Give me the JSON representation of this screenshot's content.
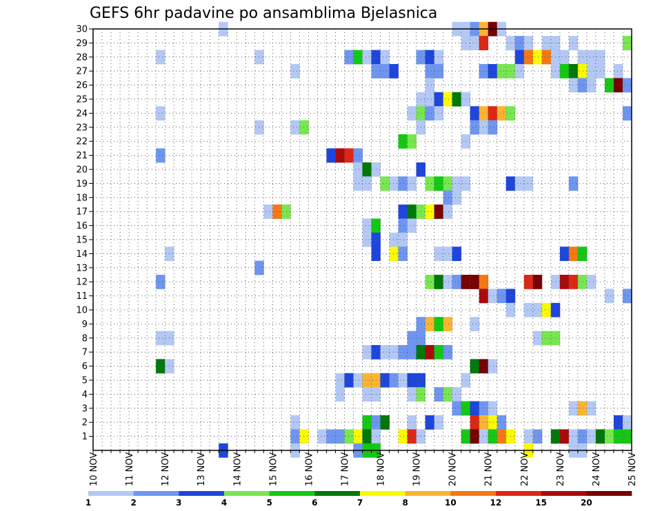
{
  "chart_data": {
    "type": "heatmap",
    "title": "GEFS 6hr padavine po ansamblima Bjelasnica",
    "xlabel": "",
    "ylabel": "",
    "x_ticks": [
      "10 NOV",
      "11 NOV",
      "12 NOV",
      "13 NOV",
      "14 NOV",
      "15 NOV",
      "16 NOV",
      "17 NOV",
      "18 NOV",
      "19 NOV",
      "20 NOV",
      "21 NOV",
      "22 NOV",
      "23 NOV",
      "24 NOV",
      "25 NOV"
    ],
    "y_ticks": [
      "1",
      "2",
      "3",
      "4",
      "5",
      "6",
      "7",
      "8",
      "9",
      "10",
      "11",
      "12",
      "13",
      "14",
      "15",
      "16",
      "17",
      "18",
      "19",
      "20",
      "21",
      "22",
      "23",
      "24",
      "25",
      "26",
      "27",
      "28",
      "29",
      "30"
    ],
    "xlim_days": [
      10,
      25
    ],
    "ylim_members": [
      0,
      30
    ],
    "grid": true,
    "legend": {
      "placement": "bottom",
      "bounds": [
        "1",
        "2",
        "3",
        "4",
        "5",
        "6",
        "7",
        "8",
        "10",
        "12",
        "15",
        "20"
      ],
      "colors": [
        "#b4c8f5",
        "#6e96f0",
        "#1e46dc",
        "#78e650",
        "#14c814",
        "#00780a",
        "#fafa00",
        "#fab432",
        "#f57814",
        "#dc2814",
        "#aa0a0a",
        "#780000"
      ]
    },
    "cells": [
      [
        13.5,
        13.75,
        30,
        0
      ],
      [
        20,
        20.25,
        30,
        0
      ],
      [
        20.25,
        20.5,
        30,
        0
      ],
      [
        20.5,
        20.75,
        30,
        1
      ],
      [
        20.75,
        21,
        30,
        7
      ],
      [
        21,
        21.25,
        30,
        11
      ],
      [
        21.25,
        21.5,
        30,
        0
      ],
      [
        20.25,
        20.5,
        29,
        0
      ],
      [
        20.5,
        20.75,
        29,
        0
      ],
      [
        20.75,
        21,
        29,
        9
      ],
      [
        21.5,
        21.75,
        29,
        0
      ],
      [
        21.75,
        22,
        29,
        1
      ],
      [
        22,
        22.25,
        29,
        0
      ],
      [
        22.5,
        22.75,
        29,
        0
      ],
      [
        22.75,
        23,
        29,
        0
      ],
      [
        23.25,
        23.5,
        29,
        0
      ],
      [
        24.75,
        25,
        29,
        3
      ],
      [
        11.75,
        12,
        28,
        0
      ],
      [
        14.5,
        14.75,
        28,
        0
      ],
      [
        17,
        17.25,
        28,
        1
      ],
      [
        17.25,
        17.5,
        28,
        4
      ],
      [
        17.5,
        17.75,
        28,
        0
      ],
      [
        17.75,
        18,
        28,
        2
      ],
      [
        18,
        18.25,
        28,
        0
      ],
      [
        19,
        19.25,
        28,
        1
      ],
      [
        19.25,
        19.5,
        28,
        2
      ],
      [
        19.5,
        19.75,
        28,
        0
      ],
      [
        21.75,
        22,
        28,
        2
      ],
      [
        22,
        22.25,
        28,
        8
      ],
      [
        22.25,
        22.5,
        28,
        6
      ],
      [
        22.5,
        22.75,
        28,
        8
      ],
      [
        22.75,
        23,
        28,
        0
      ],
      [
        23,
        23.25,
        28,
        0
      ],
      [
        23.5,
        23.75,
        28,
        0
      ],
      [
        23.75,
        24,
        28,
        0
      ],
      [
        24,
        24.25,
        28,
        0
      ],
      [
        15.5,
        15.75,
        27,
        0
      ],
      [
        17.75,
        18,
        27,
        1
      ],
      [
        18,
        18.25,
        27,
        1
      ],
      [
        18.25,
        18.5,
        27,
        2
      ],
      [
        19.25,
        19.5,
        27,
        1
      ],
      [
        19.5,
        19.75,
        27,
        1
      ],
      [
        20.75,
        21,
        27,
        1
      ],
      [
        21,
        21.25,
        27,
        2
      ],
      [
        21.25,
        21.5,
        27,
        3
      ],
      [
        21.5,
        21.75,
        27,
        3
      ],
      [
        21.75,
        22,
        27,
        0
      ],
      [
        22.75,
        23,
        27,
        0
      ],
      [
        23,
        23.25,
        27,
        4
      ],
      [
        23.25,
        23.5,
        27,
        5
      ],
      [
        23.5,
        23.75,
        27,
        6
      ],
      [
        23.75,
        24,
        27,
        0
      ],
      [
        24,
        24.25,
        27,
        0
      ],
      [
        24.5,
        24.75,
        27,
        0
      ],
      [
        19.25,
        19.5,
        26,
        0
      ],
      [
        23.25,
        23.5,
        26,
        0
      ],
      [
        23.5,
        23.75,
        26,
        1
      ],
      [
        23.75,
        24,
        26,
        0
      ],
      [
        24.25,
        24.5,
        26,
        4
      ],
      [
        24.5,
        24.75,
        26,
        11
      ],
      [
        24.75,
        25,
        26,
        1
      ],
      [
        19,
        19.25,
        25,
        0
      ],
      [
        19.25,
        19.5,
        25,
        0
      ],
      [
        19.5,
        19.75,
        25,
        2
      ],
      [
        19.75,
        20,
        25,
        6
      ],
      [
        20,
        20.25,
        25,
        5
      ],
      [
        20.25,
        20.5,
        25,
        0
      ],
      [
        11.75,
        12,
        24,
        0
      ],
      [
        18.75,
        19,
        24,
        0
      ],
      [
        19,
        19.25,
        24,
        3
      ],
      [
        19.25,
        19.5,
        24,
        1
      ],
      [
        19.5,
        19.75,
        24,
        0
      ],
      [
        20.5,
        20.75,
        24,
        2
      ],
      [
        20.75,
        21,
        24,
        7
      ],
      [
        21,
        21.25,
        24,
        9
      ],
      [
        21.25,
        21.5,
        24,
        7
      ],
      [
        21.5,
        21.75,
        24,
        3
      ],
      [
        24.75,
        25,
        24,
        1
      ],
      [
        14.5,
        14.75,
        23,
        0
      ],
      [
        15.5,
        15.75,
        23,
        0
      ],
      [
        15.75,
        16,
        23,
        3
      ],
      [
        19,
        19.25,
        23,
        0
      ],
      [
        20.5,
        20.75,
        23,
        1
      ],
      [
        20.75,
        21,
        23,
        0
      ],
      [
        21,
        21.25,
        23,
        1
      ],
      [
        18.5,
        18.75,
        22,
        4
      ],
      [
        18.75,
        19,
        22,
        3
      ],
      [
        20.25,
        20.5,
        22,
        0
      ],
      [
        11.75,
        12,
        21,
        1
      ],
      [
        16.5,
        16.75,
        21,
        2
      ],
      [
        16.75,
        17,
        21,
        10
      ],
      [
        17,
        17.25,
        21,
        9
      ],
      [
        17.25,
        17.5,
        21,
        1
      ],
      [
        17.25,
        17.5,
        20,
        0
      ],
      [
        17.5,
        17.75,
        20,
        5
      ],
      [
        17.75,
        18,
        20,
        0
      ],
      [
        19,
        19.25,
        20,
        2
      ],
      [
        17.25,
        17.5,
        19,
        0
      ],
      [
        17.5,
        17.75,
        19,
        0
      ],
      [
        18,
        18.25,
        19,
        3
      ],
      [
        18.25,
        18.5,
        19,
        0
      ],
      [
        18.5,
        18.75,
        19,
        1
      ],
      [
        18.75,
        19,
        19,
        0
      ],
      [
        19.25,
        19.5,
        19,
        3
      ],
      [
        19.5,
        19.75,
        19,
        4
      ],
      [
        19.75,
        20,
        19,
        3
      ],
      [
        20,
        20.25,
        19,
        0
      ],
      [
        20.25,
        20.5,
        19,
        0
      ],
      [
        21.5,
        21.75,
        19,
        2
      ],
      [
        21.75,
        22,
        19,
        0
      ],
      [
        22,
        22.25,
        19,
        0
      ],
      [
        23.25,
        23.5,
        19,
        1
      ],
      [
        19.75,
        20,
        18,
        1
      ],
      [
        20,
        20.25,
        18,
        0
      ],
      [
        14.75,
        15,
        17,
        0
      ],
      [
        15,
        15.25,
        17,
        8
      ],
      [
        15.25,
        15.5,
        17,
        3
      ],
      [
        18.5,
        18.75,
        17,
        2
      ],
      [
        18.75,
        19,
        17,
        5
      ],
      [
        19,
        19.25,
        17,
        3
      ],
      [
        19.25,
        19.5,
        17,
        6
      ],
      [
        19.5,
        19.75,
        17,
        11
      ],
      [
        19.75,
        20,
        17,
        0
      ],
      [
        17.5,
        17.75,
        16,
        0
      ],
      [
        17.75,
        18,
        16,
        4
      ],
      [
        18.5,
        18.75,
        16,
        1
      ],
      [
        18.75,
        19,
        16,
        0
      ],
      [
        17.5,
        17.75,
        15,
        0
      ],
      [
        17.75,
        18,
        15,
        2
      ],
      [
        18.25,
        18.5,
        15,
        0
      ],
      [
        18.5,
        18.75,
        15,
        0
      ],
      [
        12,
        12.25,
        14,
        0
      ],
      [
        17.75,
        18,
        14,
        2
      ],
      [
        18.25,
        18.5,
        14,
        6
      ],
      [
        18.5,
        18.75,
        14,
        1
      ],
      [
        19.5,
        19.75,
        14,
        0
      ],
      [
        19.75,
        20,
        14,
        0
      ],
      [
        20,
        20.25,
        14,
        2
      ],
      [
        23,
        23.25,
        14,
        2
      ],
      [
        23.25,
        23.5,
        14,
        8
      ],
      [
        23.5,
        23.75,
        14,
        4
      ],
      [
        14.5,
        14.75,
        13,
        1
      ],
      [
        11.75,
        12,
        12,
        1
      ],
      [
        19.25,
        19.5,
        12,
        3
      ],
      [
        19.5,
        19.75,
        12,
        5
      ],
      [
        19.75,
        20,
        12,
        0
      ],
      [
        20,
        20.25,
        12,
        1
      ],
      [
        20.25,
        20.5,
        12,
        11
      ],
      [
        20.5,
        20.75,
        12,
        11
      ],
      [
        20.75,
        21,
        12,
        8
      ],
      [
        22,
        22.25,
        12,
        9
      ],
      [
        22.25,
        22.5,
        12,
        11
      ],
      [
        22.75,
        23,
        12,
        0
      ],
      [
        23,
        23.25,
        12,
        10
      ],
      [
        23.25,
        23.5,
        12,
        9
      ],
      [
        23.5,
        23.75,
        12,
        3
      ],
      [
        23.75,
        24,
        12,
        0
      ],
      [
        20.75,
        21,
        11,
        10
      ],
      [
        21,
        21.25,
        11,
        0
      ],
      [
        21.25,
        21.5,
        11,
        1
      ],
      [
        21.5,
        21.75,
        11,
        2
      ],
      [
        24.25,
        24.5,
        11,
        0
      ],
      [
        24.75,
        25,
        11,
        1
      ],
      [
        21.5,
        21.75,
        10,
        0
      ],
      [
        22,
        22.25,
        10,
        0
      ],
      [
        22.25,
        22.5,
        10,
        0
      ],
      [
        22.5,
        22.75,
        10,
        6
      ],
      [
        22.75,
        23,
        10,
        2
      ],
      [
        19,
        19.25,
        9,
        1
      ],
      [
        19.25,
        19.5,
        9,
        7
      ],
      [
        19.5,
        19.75,
        9,
        4
      ],
      [
        19.75,
        20,
        9,
        7
      ],
      [
        20.5,
        20.75,
        9,
        0
      ],
      [
        11.75,
        12,
        8,
        0
      ],
      [
        12,
        12.25,
        8,
        0
      ],
      [
        18.75,
        19,
        8,
        1
      ],
      [
        19,
        19.25,
        8,
        1
      ],
      [
        22.25,
        22.5,
        8,
        0
      ],
      [
        22.5,
        22.75,
        8,
        3
      ],
      [
        22.75,
        23,
        8,
        3
      ],
      [
        17.5,
        17.75,
        7,
        0
      ],
      [
        17.75,
        18,
        7,
        2
      ],
      [
        18,
        18.25,
        7,
        0
      ],
      [
        18.25,
        18.5,
        7,
        0
      ],
      [
        18.5,
        18.75,
        7,
        1
      ],
      [
        18.75,
        19,
        7,
        1
      ],
      [
        19,
        19.25,
        7,
        5
      ],
      [
        19.25,
        19.5,
        7,
        10
      ],
      [
        19.5,
        19.75,
        7,
        4
      ],
      [
        19.75,
        20,
        7,
        1
      ],
      [
        11.75,
        12,
        6,
        5
      ],
      [
        12,
        12.25,
        6,
        0
      ],
      [
        20.5,
        20.75,
        6,
        5
      ],
      [
        20.75,
        21,
        6,
        11
      ],
      [
        21,
        21.25,
        6,
        0
      ],
      [
        16.75,
        17,
        5,
        0
      ],
      [
        17,
        17.25,
        5,
        2
      ],
      [
        17.25,
        17.5,
        5,
        0
      ],
      [
        17.5,
        17.75,
        5,
        7
      ],
      [
        17.75,
        18,
        5,
        7
      ],
      [
        18,
        18.25,
        5,
        2
      ],
      [
        18.25,
        18.5,
        5,
        1
      ],
      [
        18.5,
        18.75,
        5,
        0
      ],
      [
        18.75,
        19,
        5,
        2
      ],
      [
        19,
        19.25,
        5,
        2
      ],
      [
        20.25,
        20.5,
        5,
        0
      ],
      [
        16.75,
        17,
        4,
        0
      ],
      [
        17.5,
        17.75,
        4,
        0
      ],
      [
        17.75,
        18,
        4,
        0
      ],
      [
        18.75,
        19,
        4,
        0
      ],
      [
        19,
        19.25,
        4,
        3
      ],
      [
        19.5,
        19.75,
        4,
        1
      ],
      [
        19.75,
        20,
        4,
        3
      ],
      [
        20,
        20.25,
        4,
        0
      ],
      [
        20,
        20.25,
        3,
        1
      ],
      [
        20.25,
        20.5,
        3,
        4
      ],
      [
        20.5,
        20.75,
        3,
        2
      ],
      [
        20.75,
        21,
        3,
        1
      ],
      [
        21,
        21.25,
        3,
        0
      ],
      [
        23.25,
        23.5,
        3,
        0
      ],
      [
        23.5,
        23.75,
        3,
        7
      ],
      [
        23.75,
        24,
        3,
        0
      ],
      [
        15.5,
        15.75,
        2,
        0
      ],
      [
        17.5,
        17.75,
        2,
        4
      ],
      [
        17.75,
        18,
        2,
        1
      ],
      [
        18,
        18.25,
        2,
        5
      ],
      [
        18.75,
        19,
        2,
        0
      ],
      [
        19.25,
        19.5,
        2,
        2
      ],
      [
        19.5,
        19.75,
        2,
        0
      ],
      [
        20.5,
        20.75,
        2,
        9
      ],
      [
        20.75,
        21,
        2,
        7
      ],
      [
        21,
        21.25,
        2,
        6
      ],
      [
        21.25,
        21.5,
        2,
        1
      ],
      [
        24.5,
        24.75,
        2,
        2
      ],
      [
        24.75,
        25,
        2,
        0
      ],
      [
        15.5,
        15.75,
        1,
        1
      ],
      [
        15.75,
        16,
        1,
        6
      ],
      [
        16.25,
        16.5,
        1,
        0
      ],
      [
        16.5,
        16.75,
        1,
        1
      ],
      [
        16.75,
        17,
        1,
        1
      ],
      [
        17,
        17.25,
        1,
        3
      ],
      [
        17.25,
        17.5,
        1,
        6
      ],
      [
        17.5,
        17.75,
        1,
        5
      ],
      [
        17.75,
        18,
        1,
        0
      ],
      [
        18.5,
        18.75,
        1,
        6
      ],
      [
        18.75,
        19,
        1,
        9
      ],
      [
        19,
        19.25,
        1,
        0
      ],
      [
        20.25,
        20.5,
        1,
        4
      ],
      [
        20.5,
        20.75,
        1,
        11
      ],
      [
        20.75,
        21,
        1,
        0
      ],
      [
        21,
        21.25,
        1,
        4
      ],
      [
        21.25,
        21.5,
        1,
        8
      ],
      [
        21.5,
        21.75,
        1,
        6
      ],
      [
        22,
        22.25,
        1,
        0
      ],
      [
        22.25,
        22.5,
        1,
        1
      ],
      [
        22.75,
        23,
        1,
        5
      ],
      [
        23,
        23.25,
        1,
        10
      ],
      [
        23.25,
        23.5,
        1,
        0
      ],
      [
        23.5,
        23.75,
        1,
        1
      ],
      [
        23.75,
        24,
        1,
        0
      ],
      [
        24,
        24.25,
        1,
        5
      ],
      [
        24.25,
        24.5,
        1,
        3
      ],
      [
        24.5,
        24.75,
        1,
        4
      ],
      [
        24.75,
        25,
        1,
        4
      ],
      [
        13.5,
        13.75,
        0,
        2
      ],
      [
        15.5,
        15.75,
        0,
        0
      ],
      [
        17.25,
        17.5,
        0,
        1
      ],
      [
        17.5,
        17.75,
        0,
        4
      ],
      [
        17.75,
        18,
        0,
        4
      ],
      [
        22,
        22.25,
        0,
        6
      ],
      [
        23.25,
        23.5,
        0,
        0
      ],
      [
        23.5,
        23.75,
        0,
        0
      ]
    ]
  }
}
